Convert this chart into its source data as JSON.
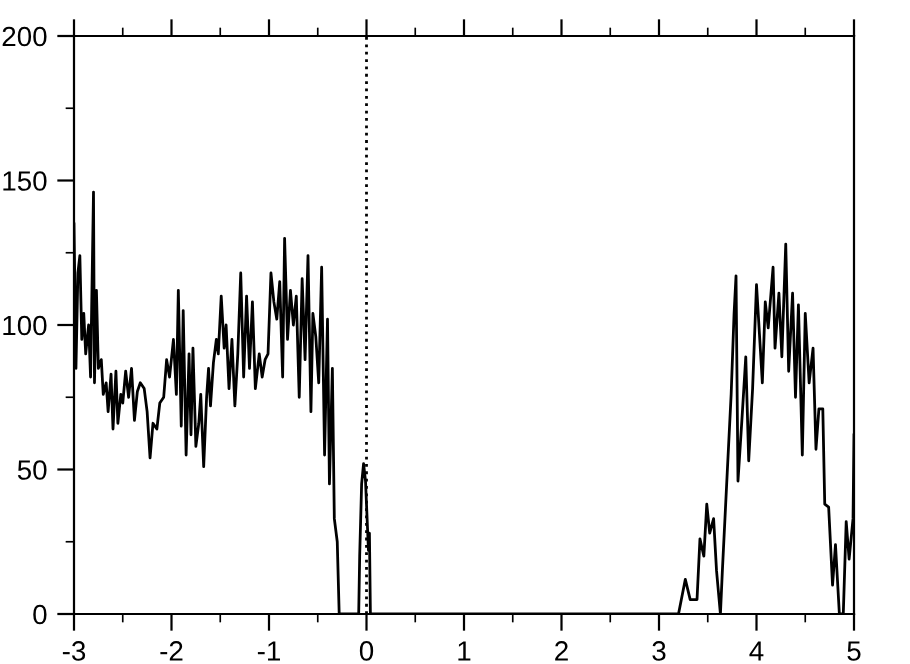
{
  "chart_data": {
    "type": "line",
    "line_style": "solid",
    "marker": "none",
    "grid": false,
    "xlim": [
      -3,
      5
    ],
    "ylim": [
      0,
      200
    ],
    "xticks": [
      -3,
      {
        "value": -2.5,
        "label": null
      },
      -2,
      {
        "value": -1.5,
        "label": null
      },
      -1,
      {
        "value": -0.5,
        "label": null
      },
      0,
      {
        "value": 0.5,
        "label": null
      },
      1,
      {
        "value": 1.5,
        "label": null
      },
      2,
      {
        "value": 2.5,
        "label": null
      },
      3,
      {
        "value": 3.5,
        "label": null
      },
      4,
      {
        "value": 4.5,
        "label": null
      },
      5
    ],
    "yticks": [
      0,
      {
        "value": 25,
        "label": null
      },
      50,
      {
        "value": 75,
        "label": null
      },
      100,
      {
        "value": 125,
        "label": null
      },
      150,
      {
        "value": 175,
        "label": null
      },
      200
    ],
    "ref_lines": [
      {
        "axis": "x",
        "value": 0,
        "color": "#000000",
        "line_style": "dotted"
      }
    ],
    "series": [
      {
        "color": "#000000",
        "x": [
          -3.0,
          -2.98,
          -2.96,
          -2.94,
          -2.92,
          -2.9,
          -2.88,
          -2.85,
          -2.83,
          -2.8,
          -2.79,
          -2.77,
          -2.75,
          -2.72,
          -2.7,
          -2.67,
          -2.65,
          -2.62,
          -2.6,
          -2.57,
          -2.55,
          -2.52,
          -2.5,
          -2.47,
          -2.44,
          -2.41,
          -2.38,
          -2.35,
          -2.32,
          -2.28,
          -2.25,
          -2.22,
          -2.19,
          -2.15,
          -2.12,
          -2.08,
          -2.05,
          -2.02,
          -1.98,
          -1.95,
          -1.93,
          -1.9,
          -1.88,
          -1.85,
          -1.82,
          -1.8,
          -1.78,
          -1.75,
          -1.72,
          -1.7,
          -1.67,
          -1.64,
          -1.62,
          -1.6,
          -1.57,
          -1.54,
          -1.52,
          -1.49,
          -1.46,
          -1.44,
          -1.41,
          -1.38,
          -1.35,
          -1.32,
          -1.29,
          -1.26,
          -1.23,
          -1.2,
          -1.17,
          -1.14,
          -1.1,
          -1.07,
          -1.04,
          -1.01,
          -0.98,
          -0.95,
          -0.92,
          -0.89,
          -0.86,
          -0.84,
          -0.81,
          -0.78,
          -0.75,
          -0.72,
          -0.69,
          -0.66,
          -0.63,
          -0.6,
          -0.57,
          -0.55,
          -0.52,
          -0.49,
          -0.46,
          -0.43,
          -0.4,
          -0.38,
          -0.35,
          -0.33,
          -0.3,
          -0.28,
          -0.08,
          -0.07,
          -0.05,
          -0.03,
          -0.01,
          0.01,
          0.02,
          0.03,
          0.04,
          3.2,
          3.27,
          3.32,
          3.39,
          3.42,
          3.46,
          3.49,
          3.52,
          3.56,
          3.59,
          3.63,
          3.65,
          3.7,
          3.74,
          3.77,
          3.79,
          3.81,
          3.85,
          3.89,
          3.92,
          3.96,
          4.0,
          4.03,
          4.06,
          4.09,
          4.12,
          4.17,
          4.19,
          4.23,
          4.26,
          4.3,
          4.33,
          4.37,
          4.4,
          4.43,
          4.47,
          4.5,
          4.54,
          4.58,
          4.61,
          4.64,
          4.68,
          4.7,
          4.74,
          4.78,
          4.81,
          4.85,
          4.89,
          4.92,
          4.95,
          4.99,
          5.0
        ],
        "values": [
          135,
          85,
          118,
          124,
          95,
          104,
          90,
          100,
          82,
          146,
          80,
          112,
          85,
          88,
          76,
          80,
          70,
          83,
          64,
          84,
          66,
          76,
          73,
          84,
          75,
          85,
          67,
          77,
          80,
          78,
          70,
          54,
          66,
          64,
          73,
          75,
          88,
          82,
          95,
          76,
          112,
          65,
          105,
          55,
          90,
          62,
          92,
          58,
          66,
          76,
          51,
          75,
          85,
          72,
          87,
          95,
          90,
          110,
          92,
          100,
          78,
          95,
          72,
          90,
          118,
          82,
          110,
          85,
          108,
          78,
          90,
          82,
          88,
          90,
          118,
          108,
          102,
          115,
          82,
          130,
          95,
          112,
          100,
          110,
          75,
          116,
          88,
          124,
          70,
          104,
          96,
          80,
          120,
          55,
          102,
          45,
          85,
          33,
          25,
          0,
          0,
          20,
          45,
          52,
          46,
          30,
          22,
          28,
          0,
          0,
          12,
          5,
          5,
          26,
          20,
          38,
          28,
          33,
          15,
          0,
          15,
          49,
          76,
          104,
          117,
          46,
          67,
          89,
          53,
          78,
          114,
          97,
          80,
          108,
          99,
          120,
          92,
          111,
          89,
          128,
          84,
          111,
          75,
          107,
          55,
          104,
          80,
          92,
          57,
          71,
          71,
          38,
          37,
          10,
          24,
          0,
          0,
          32,
          19,
          33,
          62
        ]
      }
    ]
  }
}
